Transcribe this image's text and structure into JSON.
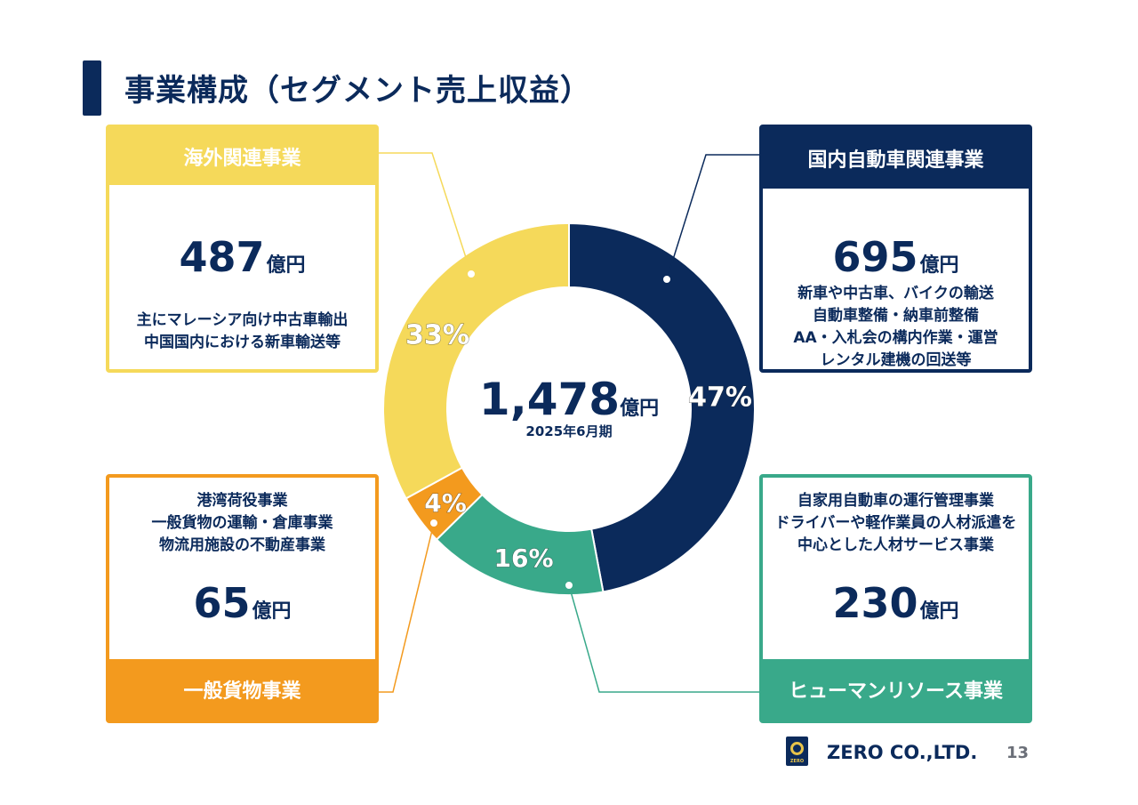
{
  "header": {
    "title": "事業構成（セグメント売上収益）"
  },
  "center": {
    "total": "1,478",
    "unit": "億円",
    "period": "2025年6月期"
  },
  "segments": {
    "overseas": {
      "name": "海外関連事業",
      "amount": "487",
      "unit": "億円",
      "desc": [
        "主にマレーシア向け中古車輸出",
        "中国国内における新車輸送等"
      ],
      "percent_label": "33%"
    },
    "domestic": {
      "name": "国内自動車関連事業",
      "amount": "695",
      "unit": "億円",
      "desc": [
        "新車や中古車、バイクの輸送",
        "自動車整備・納車前整備",
        "AA・入札会の構内作業・運営",
        "レンタル建機の回送等"
      ],
      "percent_label": "47%"
    },
    "cargo": {
      "name": "一般貨物事業",
      "amount": "65",
      "unit": "億円",
      "desc": [
        "港湾荷役事業",
        "一般貨物の運輸・倉庫事業",
        "物流用施設の不動産事業"
      ],
      "percent_label": "4%"
    },
    "hr": {
      "name": "ヒューマンリソース事業",
      "amount": "230",
      "unit": "億円",
      "desc": [
        "自家用自動車の運行管理事業",
        "ドライバーや軽作業員の人材派遣を",
        "中心とした人材サービス事業"
      ],
      "percent_label": "16%"
    }
  },
  "chart_data": {
    "type": "pie",
    "categories": [
      "国内自動車関連事業",
      "ヒューマンリソース事業",
      "一般貨物事業",
      "海外関連事業"
    ],
    "values": [
      695,
      230,
      65,
      487
    ],
    "labels": [
      "47%",
      "16%",
      "4%",
      "33%"
    ],
    "colors": [
      "#0b2a5b",
      "#39a98a",
      "#f39a1e",
      "#f5d95a"
    ]
  },
  "footer": {
    "company": "ZERO CO.,LTD.",
    "page": "13",
    "logo_text": "ZERO"
  }
}
